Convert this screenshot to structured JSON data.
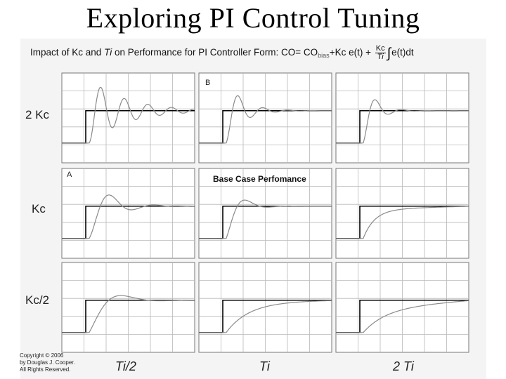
{
  "slide": {
    "title": "Exploring PI Control Tuning"
  },
  "figure": {
    "header_prefix": "Impact of Kc and ",
    "header_ti": "Ti",
    "header_mid": " on Performance for PI Controller Form:  CO= CO",
    "header_sub": "bias",
    "header_terms": "+Kc e(t) +",
    "frac_num": "Kc",
    "frac_den": "Ti",
    "integral": "∫",
    "header_tail": "e(t)dt",
    "row_labels": [
      "2 Kc",
      "Kc",
      "Kc/2"
    ],
    "col_labels": [
      "Ti/2",
      "Ti",
      "2 Ti"
    ],
    "panel_tags": {
      "top_middle": "B",
      "mid_left": "A"
    },
    "base_case": "Base Case Perfomance",
    "copyright": [
      "Copyright © 2006",
      "by Douglas J. Cooper.",
      "All Rights Reserved."
    ]
  },
  "chart_data": {
    "type": "line",
    "grid": true,
    "legend": "none",
    "rows": [
      "2 Kc",
      "Kc",
      "Kc/2"
    ],
    "cols": [
      "Ti/2",
      "Ti",
      "2 Ti"
    ],
    "step": {
      "t_step": 0.18,
      "initial": 0.0,
      "final": 1.0
    },
    "responses": [
      [
        {
          "row": "2 Kc",
          "col": "Ti/2",
          "overshoot": 0.95,
          "decay": 0.6,
          "period": 0.18,
          "drift": 0
        },
        {
          "row": "2 Kc",
          "col": "Ti",
          "overshoot": 0.5,
          "decay": 1.4,
          "period": 0.19,
          "drift": 0
        },
        {
          "row": "2 Kc",
          "col": "2 Ti",
          "overshoot": 0.28,
          "decay": 1.9,
          "period": 0.2,
          "drift": 0
        }
      ],
      [
        {
          "row": "Kc",
          "col": "Ti/2",
          "overshoot": 0.45,
          "decay": 1.1,
          "period": 0.34,
          "drift": 0
        },
        {
          "row": "Kc",
          "col": "Ti",
          "overshoot": 0.22,
          "decay": 1.8,
          "period": 0.34,
          "drift": 0
        },
        {
          "row": "Kc",
          "col": "2 Ti",
          "overshoot": 0.0,
          "decay": 1.6,
          "period": 0.3,
          "drift": 0.1
        }
      ],
      [
        {
          "row": "Kc/2",
          "col": "Ti/2",
          "overshoot": 0.15,
          "decay": 1.2,
          "period": 0.6,
          "drift": 0
        },
        {
          "row": "Kc/2",
          "col": "Ti",
          "overshoot": 0.0,
          "decay": 1.2,
          "period": 0.6,
          "drift": 0.05
        },
        {
          "row": "Kc/2",
          "col": "2 Ti",
          "overshoot": 0.0,
          "decay": 1.0,
          "period": 0.6,
          "drift": 0.25
        }
      ]
    ]
  },
  "colors": {
    "panel_bg": "#ffffff",
    "grid": "#b8b8b8",
    "border": "#777777",
    "setpoint": "#000000",
    "response": "#8a8a8a"
  }
}
